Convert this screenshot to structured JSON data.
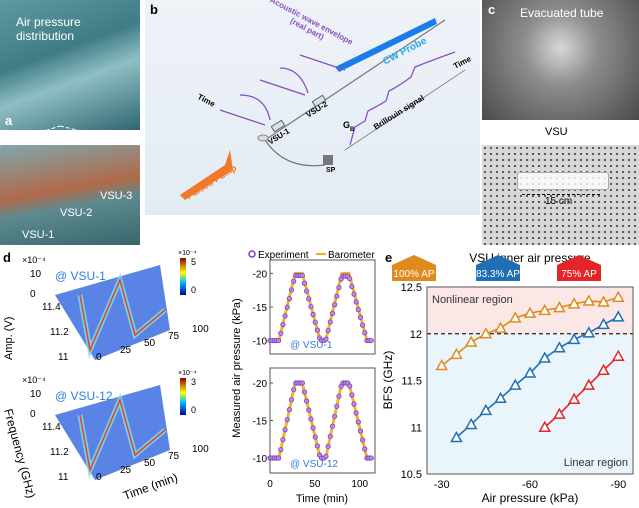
{
  "panel_a": {
    "label": "a",
    "title": "Air pressure distribution",
    "vsu_labels": [
      "VSU-1",
      "VSU-2",
      "VSU-3"
    ]
  },
  "panel_b": {
    "label": "b",
    "acoustic": "Acoustic wave envelope",
    "acoustic_sub": "(real part)",
    "cw_probe": "CW Probe",
    "time_left": "Time",
    "time_right": "Time",
    "vsu1": "VSU-1",
    "vsu2": "VSU-2",
    "gb": "G",
    "gb_sub": "B",
    "brillouin": "Brillouin signal",
    "sp": "SP",
    "pulsed_pump": "Pulsed Pump",
    "colors": {
      "pump": "#f07a2a",
      "probe": "#1a7ee8",
      "signal": "#8a4fc0"
    }
  },
  "panel_c": {
    "label": "c",
    "title": "Evacuated tube",
    "vsu": "VSU",
    "scale": "15 cm"
  },
  "panel_d": {
    "label": "d",
    "surfaces": [
      {
        "tag": "@ VSU-1",
        "zexp": "×10⁻⁴",
        "zticks": [
          "10",
          "0"
        ],
        "cbar_exp": "×10⁻⁴",
        "cbar_ticks": [
          "5",
          "0"
        ],
        "freq_ticks": [
          "11.4",
          "11.2",
          "11"
        ],
        "time_ticks": [
          "0",
          "25",
          "50",
          "75",
          "100"
        ]
      },
      {
        "tag": "@ VSU-12",
        "zexp": "×10⁻⁴",
        "zticks": [
          "10",
          "0"
        ],
        "cbar_exp": "×10⁻⁴",
        "cbar_ticks": [
          "3",
          "0"
        ],
        "freq_ticks": [
          "11.4",
          "11.2",
          "11"
        ],
        "time_ticks": [
          "0",
          "25",
          "50",
          "75",
          "100"
        ]
      }
    ],
    "amp_label": "Amp. (V)",
    "freq_label": "Frequency (GHz)",
    "time_label": "Time (min)"
  },
  "chart_data": [
    {
      "type": "line",
      "panel": "d-top",
      "annotation": "@ VSU-1",
      "legend": [
        "Experiment",
        "Barometer"
      ],
      "legend_placement": "top",
      "xlabel": "Time (min)",
      "ylabel": "Measured air pressure (kPa)",
      "xlim": [
        0,
        117
      ],
      "ylim": [
        -8,
        -22
      ],
      "yticks": [
        "-20",
        "-15",
        "-10"
      ],
      "xticks": [
        "0",
        "50",
        "100"
      ],
      "colors": {
        "Experiment": "#7b3fc4",
        "Barometer": "#f5b324"
      },
      "series": [
        {
          "name": "Barometer",
          "x": [
            0,
            10,
            28,
            36,
            56,
            62,
            80,
            88,
            108,
            115
          ],
          "y": [
            -10,
            -10,
            -20,
            -20,
            -10,
            -10,
            -20,
            -20,
            -10,
            -10
          ]
        },
        {
          "name": "Experiment",
          "x": [
            0,
            10,
            28,
            36,
            56,
            62,
            80,
            88,
            108,
            115
          ],
          "y": [
            -10,
            -10,
            -19.7,
            -19.7,
            -10,
            -10,
            -19.6,
            -19.6,
            -10,
            -10
          ]
        }
      ]
    },
    {
      "type": "line",
      "panel": "d-bottom",
      "annotation": "@ VSU-12",
      "xlabel": "Time (min)",
      "xlim": [
        0,
        117
      ],
      "ylim": [
        -8,
        -22
      ],
      "yticks": [
        "-20",
        "-15",
        "-10"
      ],
      "xticks": [
        "0",
        "50",
        "100"
      ],
      "series": [
        {
          "name": "Barometer",
          "x": [
            0,
            10,
            28,
            36,
            56,
            62,
            80,
            88,
            108,
            115
          ],
          "y": [
            -10,
            -10,
            -20,
            -20,
            -10,
            -10,
            -20,
            -20,
            -10,
            -10
          ]
        },
        {
          "name": "Experiment",
          "x": [
            0,
            10,
            28,
            36,
            56,
            62,
            80,
            88,
            108,
            115
          ],
          "y": [
            -10,
            -10,
            -20,
            -20,
            -10,
            -10,
            -20,
            -20,
            -10,
            -10
          ]
        }
      ]
    },
    {
      "type": "line",
      "panel": "e",
      "title": "VSU inner air pressure",
      "xlabel": "Air pressure (kPa)",
      "ylabel": "BFS (GHz)",
      "xlim": [
        -25,
        -95
      ],
      "ylim": [
        10.5,
        12.5
      ],
      "xticks": [
        "-30",
        "-60",
        "-90"
      ],
      "yticks": [
        "12.5",
        "12",
        "11.5",
        "11",
        "10.5"
      ],
      "threshold": 12,
      "regions": [
        "Nonlinear region",
        "Linear region"
      ],
      "series": [
        {
          "name": "100% AP",
          "color": "#e08a1e",
          "x": [
            -30,
            -35,
            -40,
            -45,
            -50,
            -55,
            -60,
            -65,
            -70,
            -75,
            -80,
            -85,
            -90
          ],
          "y": [
            11.66,
            11.78,
            11.91,
            12.0,
            12.06,
            12.17,
            12.22,
            12.25,
            12.28,
            12.32,
            12.35,
            12.34,
            12.39
          ]
        },
        {
          "name": "83.3% AP",
          "color": "#1f6fb5",
          "x": [
            -35,
            -40,
            -45,
            -50,
            -55,
            -60,
            -65,
            -70,
            -75,
            -80,
            -85,
            -90
          ],
          "y": [
            10.89,
            11.03,
            11.18,
            11.31,
            11.45,
            11.58,
            11.74,
            11.85,
            11.94,
            12.01,
            12.1,
            12.18
          ]
        },
        {
          "name": "75% AP",
          "color": "#e3242b",
          "x": [
            -65,
            -70,
            -75,
            -80,
            -85,
            -90
          ],
          "y": [
            11.0,
            11.14,
            11.3,
            11.45,
            11.61,
            11.76
          ]
        }
      ],
      "label": "e"
    }
  ]
}
